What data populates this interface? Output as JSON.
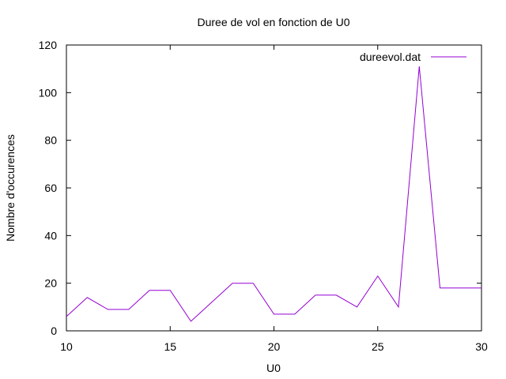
{
  "chart_data": {
    "type": "line",
    "title": "Duree de vol en fonction de U0",
    "xlabel": "U0",
    "ylabel": "Nombre d'occurences",
    "xlim": [
      10,
      30
    ],
    "ylim": [
      0,
      120
    ],
    "xticks": [
      10,
      15,
      20,
      25,
      30
    ],
    "yticks": [
      0,
      20,
      40,
      60,
      80,
      100,
      120
    ],
    "grid": false,
    "legend_position": "top-right",
    "series": [
      {
        "name": "dureevol.dat",
        "color": "#9400d3",
        "x": [
          10,
          11,
          12,
          13,
          14,
          15,
          16,
          17,
          18,
          19,
          20,
          21,
          22,
          23,
          24,
          25,
          26,
          27,
          28,
          29,
          30
        ],
        "y": [
          6,
          14,
          9,
          9,
          17,
          17,
          4,
          12,
          20,
          20,
          7,
          7,
          15,
          15,
          10,
          23,
          10,
          111,
          18,
          18,
          18
        ]
      }
    ]
  }
}
